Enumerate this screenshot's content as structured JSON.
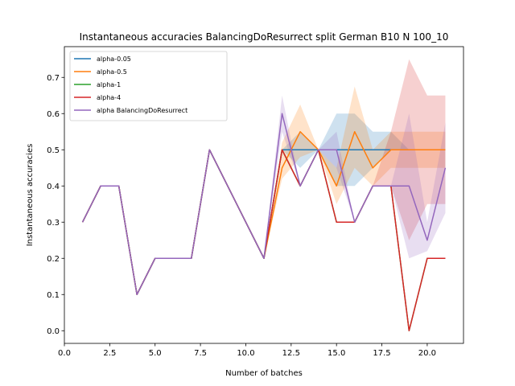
{
  "chart_data": {
    "type": "line",
    "title": "Instantaneous accuracies BalancingDoResurrect split German B10 N 100_10",
    "xlabel": "Number of batches",
    "ylabel": "Instantaneous accuracies",
    "xlim": [
      0,
      22
    ],
    "ylim": [
      -0.035,
      0.785
    ],
    "xticks": [
      0.0,
      2.5,
      5.0,
      7.5,
      10.0,
      12.5,
      15.0,
      17.5,
      20.0
    ],
    "xtick_labels": [
      "0.0",
      "2.5",
      "5.0",
      "7.5",
      "10.0",
      "12.5",
      "15.0",
      "17.5",
      "20.0"
    ],
    "yticks": [
      0.0,
      0.1,
      0.2,
      0.3,
      0.4,
      0.5,
      0.6,
      0.7
    ],
    "ytick_labels": [
      "0.0",
      "0.1",
      "0.2",
      "0.3",
      "0.4",
      "0.5",
      "0.6",
      "0.7"
    ],
    "grid": false,
    "legend_position": "top-left",
    "x": [
      1,
      2,
      3,
      4,
      5,
      6,
      7,
      8,
      9,
      10,
      11,
      12,
      13,
      14,
      15,
      16,
      17,
      18,
      19,
      20,
      21
    ],
    "series": [
      {
        "name": "alpha-0.05",
        "color": "#1f77b4",
        "values": [
          0.3,
          0.4,
          0.4,
          0.1,
          0.2,
          0.2,
          0.2,
          0.5,
          0.4,
          0.3,
          0.2,
          0.5,
          0.5,
          0.5,
          0.5,
          0.5,
          0.5,
          0.5,
          0.5,
          0.5,
          0.5
        ],
        "band_lower": [
          0.3,
          0.4,
          0.4,
          0.1,
          0.2,
          0.2,
          0.2,
          0.5,
          0.4,
          0.3,
          0.2,
          0.5,
          0.45,
          0.5,
          0.4,
          0.4,
          0.45,
          0.5,
          0.5,
          0.5,
          0.5
        ],
        "band_upper": [
          0.3,
          0.4,
          0.4,
          0.1,
          0.2,
          0.2,
          0.2,
          0.5,
          0.4,
          0.3,
          0.2,
          0.5,
          0.55,
          0.5,
          0.6,
          0.6,
          0.55,
          0.55,
          0.5,
          0.5,
          0.5
        ]
      },
      {
        "name": "alpha-0.5",
        "color": "#ff7f0e",
        "values": [
          0.3,
          0.4,
          0.4,
          0.1,
          0.2,
          0.2,
          0.2,
          0.5,
          0.4,
          0.3,
          0.2,
          0.45,
          0.55,
          0.5,
          0.4,
          0.55,
          0.45,
          0.5,
          0.5,
          0.5,
          0.5
        ],
        "band_lower": [
          0.3,
          0.4,
          0.4,
          0.1,
          0.2,
          0.2,
          0.2,
          0.5,
          0.4,
          0.3,
          0.2,
          0.42,
          0.48,
          0.5,
          0.35,
          0.45,
          0.4,
          0.45,
          0.45,
          0.45,
          0.45
        ],
        "band_upper": [
          0.3,
          0.4,
          0.4,
          0.1,
          0.2,
          0.2,
          0.2,
          0.5,
          0.4,
          0.3,
          0.2,
          0.52,
          0.625,
          0.5,
          0.45,
          0.675,
          0.5,
          0.55,
          0.55,
          0.55,
          0.55
        ]
      },
      {
        "name": "alpha-1",
        "color": "#2ca02c",
        "values": [
          0.3,
          0.4,
          0.4,
          0.1,
          0.2,
          0.2,
          0.2,
          0.5,
          0.4,
          0.3,
          0.2,
          0.5,
          0.4,
          0.5,
          0.3,
          0.3,
          0.4,
          0.4,
          0.0,
          0.2,
          0.2
        ],
        "band_lower": [],
        "band_upper": []
      },
      {
        "name": "alpha-4",
        "color": "#d62728",
        "values": [
          0.3,
          0.4,
          0.4,
          0.1,
          0.2,
          0.2,
          0.2,
          0.5,
          0.4,
          0.3,
          0.2,
          0.5,
          0.4,
          0.5,
          0.3,
          0.3,
          0.4,
          0.4,
          0.0,
          0.2,
          0.2
        ],
        "band_lower": [
          0.3,
          0.4,
          0.4,
          0.1,
          0.2,
          0.2,
          0.2,
          0.5,
          0.4,
          0.3,
          0.2,
          0.5,
          0.4,
          0.5,
          0.3,
          0.3,
          0.4,
          0.4,
          0.25,
          0.35,
          0.35
        ],
        "band_upper": [
          0.3,
          0.4,
          0.4,
          0.1,
          0.2,
          0.2,
          0.2,
          0.5,
          0.4,
          0.3,
          0.2,
          0.5,
          0.4,
          0.5,
          0.3,
          0.3,
          0.4,
          0.55,
          0.75,
          0.65,
          0.65
        ]
      },
      {
        "name": "alpha BalancingDoResurrect",
        "color": "#9467bd",
        "values": [
          0.3,
          0.4,
          0.4,
          0.1,
          0.2,
          0.2,
          0.2,
          0.5,
          0.4,
          0.3,
          0.2,
          0.6,
          0.4,
          0.5,
          0.5,
          0.3,
          0.4,
          0.4,
          0.4,
          0.25,
          0.45
        ],
        "band_lower": [
          0.3,
          0.4,
          0.4,
          0.1,
          0.2,
          0.2,
          0.2,
          0.5,
          0.4,
          0.3,
          0.2,
          0.55,
          0.4,
          0.5,
          0.45,
          0.3,
          0.4,
          0.4,
          0.2,
          0.22,
          0.325
        ],
        "band_upper": [
          0.3,
          0.4,
          0.4,
          0.1,
          0.2,
          0.2,
          0.2,
          0.5,
          0.4,
          0.3,
          0.2,
          0.65,
          0.4,
          0.5,
          0.55,
          0.3,
          0.4,
          0.4,
          0.6,
          0.3,
          0.575
        ]
      }
    ]
  }
}
